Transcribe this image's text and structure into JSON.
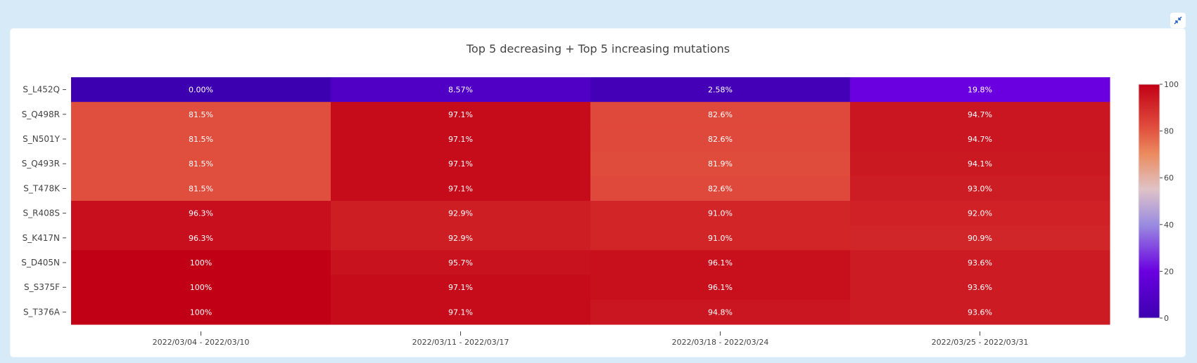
{
  "toolbar": {
    "collapse_icon": "collapse-arrows-icon"
  },
  "colors": {
    "background": "#d6ebf7",
    "panel": "#ffffff",
    "accent": "#1f5fbf"
  },
  "chart_data": {
    "type": "heatmap",
    "title": "Top 5 decreasing + Top 5 increasing mutations",
    "xlabel": "",
    "ylabel": "",
    "x": [
      "2022/03/04 - 2022/03/10",
      "2022/03/11 - 2022/03/17",
      "2022/03/18 - 2022/03/24",
      "2022/03/25 - 2022/03/31"
    ],
    "y": [
      "S_L452Q",
      "S_Q498R",
      "S_N501Y",
      "S_Q493R",
      "S_T478K",
      "S_R408S",
      "S_K417N",
      "S_D405N",
      "S_S375F",
      "S_T376A"
    ],
    "z": [
      [
        0.0,
        8.57,
        2.58,
        19.8
      ],
      [
        81.5,
        97.1,
        82.6,
        94.7
      ],
      [
        81.5,
        97.1,
        82.6,
        94.7
      ],
      [
        81.5,
        97.1,
        81.9,
        94.1
      ],
      [
        81.5,
        97.1,
        82.6,
        93.0
      ],
      [
        96.3,
        92.9,
        91.0,
        92.0
      ],
      [
        96.3,
        92.9,
        91.0,
        90.9
      ],
      [
        100,
        95.7,
        96.1,
        93.6
      ],
      [
        100,
        97.1,
        96.1,
        93.6
      ],
      [
        100,
        97.1,
        94.8,
        93.6
      ]
    ],
    "text": [
      [
        "0.00%",
        "8.57%",
        "2.58%",
        "19.8%"
      ],
      [
        "81.5%",
        "97.1%",
        "82.6%",
        "94.7%"
      ],
      [
        "81.5%",
        "97.1%",
        "82.6%",
        "94.7%"
      ],
      [
        "81.5%",
        "97.1%",
        "81.9%",
        "94.1%"
      ],
      [
        "81.5%",
        "97.1%",
        "82.6%",
        "93.0%"
      ],
      [
        "96.3%",
        "92.9%",
        "91.0%",
        "92.0%"
      ],
      [
        "96.3%",
        "92.9%",
        "91.0%",
        "90.9%"
      ],
      [
        "100%",
        "95.7%",
        "96.1%",
        "93.6%"
      ],
      [
        "100%",
        "97.1%",
        "96.1%",
        "93.6%"
      ],
      [
        "100%",
        "97.1%",
        "94.8%",
        "93.6%"
      ]
    ],
    "zlim": [
      0,
      100
    ],
    "colorbar_ticks": [
      "0",
      "20",
      "40",
      "60",
      "80",
      "100"
    ],
    "colorscale": [
      [
        0.0,
        "#3d00b0"
      ],
      [
        0.2,
        "#6a00e0"
      ],
      [
        0.4,
        "#9a8ce0"
      ],
      [
        0.55,
        "#dfc3c8"
      ],
      [
        0.7,
        "#eb8c60"
      ],
      [
        0.82,
        "#e04b3c"
      ],
      [
        1.0,
        "#c10015"
      ]
    ],
    "colorbar_position": "right",
    "grid": false
  }
}
